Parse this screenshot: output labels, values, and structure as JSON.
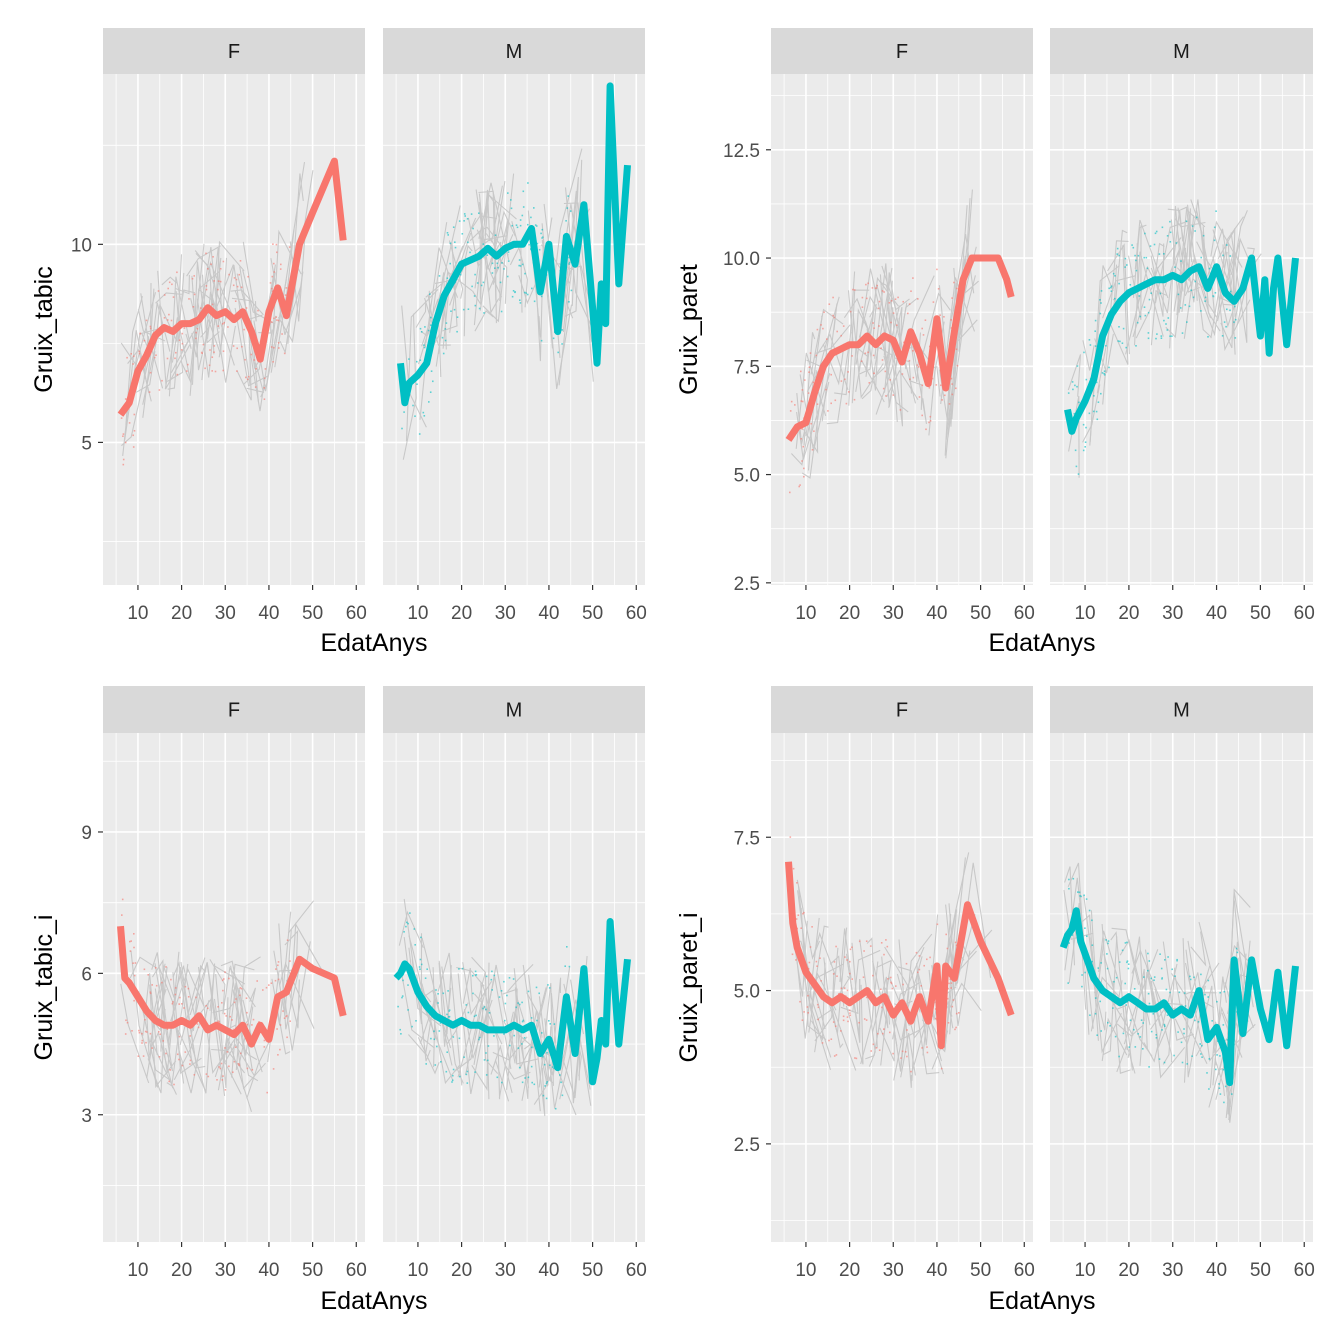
{
  "colors": {
    "F": "#F8766D",
    "M": "#00BFC4",
    "panel": "#EBEBEB",
    "strip": "#D9D9D9",
    "spaghetti": "#BDBDBD"
  },
  "chart_data": [
    {
      "type": "line",
      "facets": [
        "F",
        "M"
      ],
      "xlabel": "EdatAnys",
      "ylabel": "Gruix_tabic",
      "xlim": [
        2,
        62
      ],
      "ylim": [
        1.4,
        14.3
      ],
      "xticks": [
        "10",
        "20",
        "30",
        "40",
        "50",
        "60"
      ],
      "xtick_values": [
        10,
        20,
        30,
        40,
        50,
        60
      ],
      "yticks": [
        "5",
        "10"
      ],
      "ytick_values": [
        5,
        10
      ],
      "grid": true,
      "series": [
        {
          "facet": "F",
          "x": [
            6,
            8,
            10,
            12,
            14,
            16,
            18,
            20,
            22,
            24,
            26,
            28,
            30,
            32,
            34,
            36,
            38,
            40,
            42,
            44,
            47,
            50,
            55,
            57
          ],
          "y": [
            5.7,
            6.0,
            6.8,
            7.2,
            7.7,
            7.9,
            7.8,
            8.0,
            8.0,
            8.1,
            8.4,
            8.2,
            8.3,
            8.1,
            8.3,
            7.8,
            7.1,
            8.3,
            8.9,
            8.2,
            10.0,
            10.8,
            12.1,
            10.1
          ]
        },
        {
          "facet": "M",
          "x": [
            6,
            7,
            8,
            10,
            12,
            14,
            16,
            18,
            20,
            22,
            24,
            26,
            28,
            30,
            32,
            34,
            36,
            38,
            40,
            42,
            44,
            46,
            48,
            50,
            51,
            52,
            53,
            54,
            56,
            58
          ],
          "y": [
            7.0,
            6.0,
            6.5,
            6.7,
            7.0,
            8.0,
            8.7,
            9.1,
            9.5,
            9.6,
            9.7,
            9.9,
            9.7,
            9.9,
            10.0,
            10.0,
            10.4,
            8.8,
            10.0,
            7.8,
            10.2,
            9.5,
            11.0,
            8.4,
            7.0,
            9.0,
            8.0,
            14.0,
            9.0,
            12.0
          ]
        }
      ]
    },
    {
      "type": "line",
      "facets": [
        "F",
        "M"
      ],
      "xlabel": "EdatAnys",
      "ylabel": "Gruix_paret",
      "xlim": [
        2,
        62
      ],
      "ylim": [
        2.45,
        14.25
      ],
      "xticks": [
        "10",
        "20",
        "30",
        "40",
        "50",
        "60"
      ],
      "xtick_values": [
        10,
        20,
        30,
        40,
        50,
        60
      ],
      "yticks": [
        "2.5",
        "5.0",
        "7.5",
        "10.0",
        "12.5"
      ],
      "ytick_values": [
        2.5,
        5.0,
        7.5,
        10.0,
        12.5
      ],
      "grid": true,
      "series": [
        {
          "facet": "F",
          "x": [
            6,
            8,
            10,
            12,
            14,
            16,
            18,
            20,
            22,
            24,
            26,
            28,
            30,
            32,
            34,
            36,
            38,
            40,
            42,
            44,
            46,
            48,
            50,
            54,
            56,
            57
          ],
          "y": [
            5.8,
            6.1,
            6.2,
            6.9,
            7.5,
            7.8,
            7.9,
            8.0,
            8.0,
            8.2,
            8.0,
            8.2,
            8.1,
            7.6,
            8.3,
            7.8,
            7.1,
            8.6,
            7.0,
            8.3,
            9.5,
            10.0,
            10.0,
            10.0,
            9.5,
            9.1
          ]
        },
        {
          "facet": "M",
          "x": [
            6,
            7,
            8,
            10,
            12,
            14,
            16,
            18,
            20,
            22,
            24,
            26,
            28,
            30,
            32,
            34,
            36,
            38,
            40,
            42,
            44,
            46,
            48,
            50,
            51,
            52,
            53,
            54,
            56,
            58
          ],
          "y": [
            6.5,
            6.0,
            6.3,
            6.7,
            7.2,
            8.2,
            8.7,
            9.0,
            9.2,
            9.3,
            9.4,
            9.5,
            9.5,
            9.6,
            9.5,
            9.7,
            9.8,
            9.3,
            9.8,
            9.2,
            9.0,
            9.3,
            10.0,
            8.2,
            9.5,
            7.8,
            9.3,
            10.0,
            8.0,
            10.0
          ]
        }
      ]
    },
    {
      "type": "line",
      "facets": [
        "F",
        "M"
      ],
      "xlabel": "EdatAnys",
      "ylabel": "Gruix_tabic_i",
      "xlim": [
        2,
        62
      ],
      "ylim": [
        0.3,
        11.1
      ],
      "xticks": [
        "10",
        "20",
        "30",
        "40",
        "50",
        "60"
      ],
      "xtick_values": [
        10,
        20,
        30,
        40,
        50,
        60
      ],
      "yticks": [
        "3",
        "6",
        "9"
      ],
      "ytick_values": [
        3,
        6,
        9
      ],
      "grid": true,
      "series": [
        {
          "facet": "F",
          "x": [
            6,
            7,
            8,
            10,
            12,
            14,
            16,
            18,
            20,
            22,
            24,
            26,
            28,
            30,
            32,
            34,
            36,
            38,
            40,
            42,
            44,
            47,
            50,
            55,
            57
          ],
          "y": [
            7.0,
            5.9,
            5.8,
            5.5,
            5.2,
            5.0,
            4.9,
            4.9,
            5.0,
            4.9,
            5.1,
            4.8,
            4.9,
            4.8,
            4.7,
            4.9,
            4.5,
            4.9,
            4.6,
            5.5,
            5.6,
            6.3,
            6.1,
            5.9,
            5.1
          ]
        },
        {
          "facet": "M",
          "x": [
            5,
            6,
            7,
            8,
            10,
            12,
            14,
            16,
            18,
            20,
            22,
            24,
            26,
            28,
            30,
            32,
            34,
            36,
            38,
            40,
            42,
            44,
            46,
            48,
            50,
            51,
            52,
            53,
            54,
            56,
            58
          ],
          "y": [
            5.9,
            6.0,
            6.2,
            6.1,
            5.6,
            5.3,
            5.1,
            5.0,
            4.9,
            5.0,
            4.9,
            4.9,
            4.8,
            4.8,
            4.8,
            4.9,
            4.8,
            4.9,
            4.3,
            4.6,
            4.0,
            5.5,
            4.3,
            6.1,
            3.7,
            4.2,
            5.0,
            4.5,
            7.1,
            4.5,
            6.3
          ]
        }
      ]
    },
    {
      "type": "line",
      "facets": [
        "F",
        "M"
      ],
      "xlabel": "EdatAnys",
      "ylabel": "Gruix_paret_i",
      "xlim": [
        2,
        62
      ],
      "ylim": [
        0.9,
        9.2
      ],
      "xticks": [
        "10",
        "20",
        "30",
        "40",
        "50",
        "60"
      ],
      "xtick_values": [
        10,
        20,
        30,
        40,
        50,
        60
      ],
      "yticks": [
        "2.5",
        "5.0",
        "7.5"
      ],
      "ytick_values": [
        2.5,
        5.0,
        7.5
      ],
      "grid": true,
      "series": [
        {
          "facet": "F",
          "x": [
            6,
            7,
            8,
            9,
            10,
            12,
            14,
            16,
            18,
            20,
            22,
            24,
            26,
            28,
            30,
            32,
            34,
            36,
            38,
            40,
            41,
            42,
            44,
            47,
            50,
            54,
            57
          ],
          "y": [
            7.1,
            6.1,
            5.7,
            5.5,
            5.3,
            5.1,
            4.9,
            4.8,
            4.9,
            4.8,
            4.9,
            5.0,
            4.8,
            4.9,
            4.6,
            4.8,
            4.5,
            4.9,
            4.5,
            5.4,
            4.1,
            5.4,
            5.2,
            6.4,
            5.8,
            5.2,
            4.6
          ]
        },
        {
          "facet": "M",
          "x": [
            5,
            6,
            7,
            8,
            9,
            10,
            12,
            14,
            16,
            18,
            20,
            22,
            24,
            26,
            28,
            30,
            32,
            34,
            36,
            38,
            40,
            42,
            43,
            44,
            46,
            48,
            50,
            52,
            54,
            56,
            58
          ],
          "y": [
            5.7,
            5.9,
            6.0,
            6.3,
            5.8,
            5.6,
            5.2,
            5.0,
            4.9,
            4.8,
            4.9,
            4.8,
            4.7,
            4.7,
            4.8,
            4.6,
            4.7,
            4.6,
            5.0,
            4.2,
            4.4,
            4.0,
            3.5,
            5.5,
            4.3,
            5.5,
            4.7,
            4.2,
            5.3,
            4.1,
            5.4
          ]
        }
      ]
    }
  ]
}
